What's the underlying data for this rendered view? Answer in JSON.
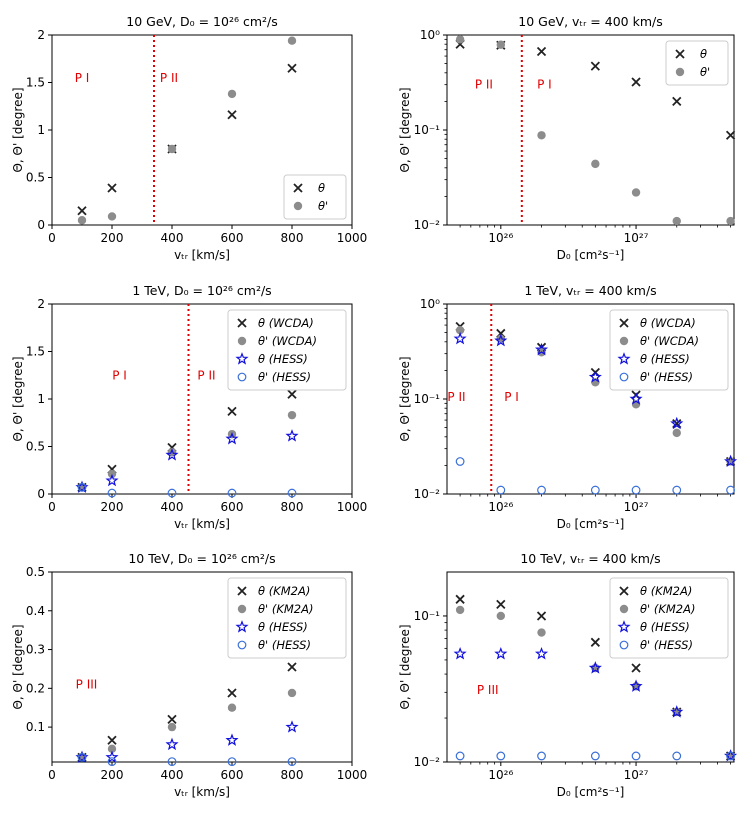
{
  "colors": {
    "theta": "#222222",
    "theta_prime": "#8c8c8c",
    "hess": "#1010e0",
    "hess_open": "#3a6fd8",
    "region": "#e00000"
  },
  "chart_data": [
    {
      "type": "scatter",
      "scale": "linear",
      "title": "10 GeV, D₀ = 10²⁶ cm²/s",
      "xlabel": "vₜᵣ [km/s]",
      "ylabel": "Θ, Θ' [degree]",
      "xlim": [
        0,
        1000
      ],
      "ylim": [
        0,
        2
      ],
      "xticks": [
        0,
        200,
        400,
        600,
        800,
        1000
      ],
      "xtick_labels": [
        "0",
        "200",
        "400",
        "600",
        "800",
        "1000"
      ],
      "yticks": [
        0,
        0.5,
        1,
        1.5,
        2
      ],
      "ytick_labels": [
        "0",
        "0.5",
        "1",
        "1.5",
        "2"
      ],
      "vline": 340,
      "regions": [
        {
          "label": "P I",
          "x": 100,
          "y": 1.55
        },
        {
          "label": "P II",
          "x": 390,
          "y": 1.55
        }
      ],
      "legend": "lower-right",
      "series": [
        {
          "name": "θ",
          "marker": "x",
          "x": [
            100,
            200,
            400,
            600,
            800
          ],
          "y": [
            0.15,
            0.39,
            0.8,
            1.16,
            1.65
          ]
        },
        {
          "name": "θ'",
          "marker": "dot",
          "x": [
            100,
            200,
            400,
            600,
            800
          ],
          "y": [
            0.05,
            0.09,
            0.8,
            1.38,
            1.94
          ]
        }
      ]
    },
    {
      "type": "scatter",
      "scale": "loglog",
      "title": "10 GeV, vₜᵣ = 400 km/s",
      "xlabel": "D₀ [cm²s⁻¹]",
      "ylabel": "Θ, Θ' [degree]",
      "xlim": [
        4e+25,
        5.3e+27
      ],
      "ylim": [
        0.01,
        1
      ],
      "xticks": [
        1e+26,
        1e+27
      ],
      "xtick_labels": [
        "10²⁶",
        "10²⁷"
      ],
      "yticks": [
        0.01,
        0.1,
        1
      ],
      "ytick_labels": [
        "10⁻²",
        "10⁻¹",
        "10⁰"
      ],
      "vline": 1.43e+26,
      "regions": [
        {
          "label": "P II",
          "x": 7.5e+25,
          "y": 0.3
        },
        {
          "label": "P I",
          "x": 2.1e+26,
          "y": 0.3
        }
      ],
      "legend": "top-right",
      "series": [
        {
          "name": "θ",
          "marker": "x",
          "x": [
            5e+25,
            1e+26,
            2e+26,
            5e+26,
            1e+27,
            2e+27,
            5e+27
          ],
          "y": [
            0.8,
            0.78,
            0.67,
            0.47,
            0.32,
            0.2,
            0.088
          ]
        },
        {
          "name": "θ'",
          "marker": "dot",
          "x": [
            5e+25,
            1e+26,
            2e+26,
            5e+26,
            1e+27,
            2e+27,
            5e+27
          ],
          "y": [
            0.9,
            0.79,
            0.088,
            0.044,
            0.022,
            0.011,
            0.011
          ]
        }
      ]
    },
    {
      "type": "scatter",
      "scale": "linear",
      "title": "1 TeV, D₀ = 10²⁶ cm²/s",
      "xlabel": "vₜᵣ [km/s]",
      "ylabel": "Θ, Θ' [degree]",
      "xlim": [
        0,
        1000
      ],
      "ylim": [
        0,
        2
      ],
      "xticks": [
        0,
        200,
        400,
        600,
        800,
        1000
      ],
      "xtick_labels": [
        "0",
        "200",
        "400",
        "600",
        "800",
        "1000"
      ],
      "yticks": [
        0,
        0.5,
        1,
        1.5,
        2
      ],
      "ytick_labels": [
        "0",
        "0.5",
        "1",
        "1.5",
        "2"
      ],
      "vline": 455,
      "regions": [
        {
          "label": "P I",
          "x": 225,
          "y": 1.25
        },
        {
          "label": "P II",
          "x": 515,
          "y": 1.25
        }
      ],
      "legend": "top-right",
      "series": [
        {
          "name": "θ (WCDA)",
          "marker": "x",
          "x": [
            100,
            200,
            400,
            600,
            800
          ],
          "y": [
            0.07,
            0.26,
            0.49,
            0.87,
            1.05
          ]
        },
        {
          "name": "θ' (WCDA)",
          "marker": "dot",
          "x": [
            100,
            200,
            400,
            600,
            800
          ],
          "y": [
            0.07,
            0.21,
            0.44,
            0.63,
            0.83
          ]
        },
        {
          "name": "θ (HESS)",
          "marker": "star",
          "x": [
            100,
            200,
            400,
            600,
            800
          ],
          "y": [
            0.07,
            0.14,
            0.41,
            0.58,
            0.61
          ]
        },
        {
          "name": "θ' (HESS)",
          "marker": "circle",
          "x": [
            100,
            200,
            400,
            600,
            800
          ],
          "y": [
            0.07,
            0.01,
            0.01,
            0.01,
            0.01
          ]
        }
      ]
    },
    {
      "type": "scatter",
      "scale": "loglog",
      "title": "1 TeV, vₜᵣ = 400 km/s",
      "xlabel": "D₀ [cm²s⁻¹]",
      "ylabel": "Θ, Θ' [degree]",
      "xlim": [
        4e+25,
        5.3e+27
      ],
      "ylim": [
        0.01,
        1
      ],
      "xticks": [
        1e+26,
        1e+27
      ],
      "xtick_labels": [
        "10²⁶",
        "10²⁷"
      ],
      "yticks": [
        0.01,
        0.1,
        1
      ],
      "ytick_labels": [
        "10⁻²",
        "10⁻¹",
        "10⁰"
      ],
      "vline": 8.5e+25,
      "regions": [
        {
          "label": "P II",
          "x": 4.7e+25,
          "y": 0.105
        },
        {
          "label": "P I",
          "x": 1.2e+26,
          "y": 0.105
        }
      ],
      "legend": "top-right",
      "series": [
        {
          "name": "θ (WCDA)",
          "marker": "x",
          "x": [
            5e+25,
            1e+26,
            2e+26,
            5e+26,
            1e+27,
            2e+27,
            5e+27
          ],
          "y": [
            0.58,
            0.49,
            0.35,
            0.19,
            0.11,
            0.055,
            0.022
          ]
        },
        {
          "name": "θ' (WCDA)",
          "marker": "dot",
          "x": [
            5e+25,
            1e+26,
            2e+26,
            5e+26,
            1e+27,
            2e+27,
            5e+27
          ],
          "y": [
            0.53,
            0.43,
            0.31,
            0.15,
            0.088,
            0.044,
            0.022
          ]
        },
        {
          "name": "θ (HESS)",
          "marker": "star",
          "x": [
            5e+25,
            1e+26,
            2e+26,
            5e+26,
            1e+27,
            2e+27,
            5e+27
          ],
          "y": [
            0.43,
            0.41,
            0.33,
            0.17,
            0.1,
            0.055,
            0.022
          ]
        },
        {
          "name": "θ' (HESS)",
          "marker": "circle",
          "x": [
            5e+25,
            1e+26,
            2e+26,
            5e+26,
            1e+27,
            2e+27,
            5e+27
          ],
          "y": [
            0.022,
            0.011,
            0.011,
            0.011,
            0.011,
            0.011,
            0.011
          ]
        }
      ]
    },
    {
      "type": "scatter",
      "scale": "linear",
      "title": "10 TeV, D₀ = 10²⁶ cm²/s",
      "xlabel": "vₜᵣ [km/s]",
      "ylabel": "Θ, Θ' [degree]",
      "xlim": [
        0,
        1000
      ],
      "ylim": [
        0.01,
        0.5
      ],
      "xticks": [
        0,
        200,
        400,
        600,
        800,
        1000
      ],
      "xtick_labels": [
        "0",
        "200",
        "400",
        "600",
        "800",
        "1000"
      ],
      "yticks": [
        0.1,
        0.2,
        0.3,
        0.4,
        0.5
      ],
      "ytick_labels": [
        "0.1",
        "0.2",
        "0.3",
        "0.4",
        "0.5"
      ],
      "vline": null,
      "regions": [
        {
          "label": "P III",
          "x": 115,
          "y": 0.21
        }
      ],
      "legend": "top-right",
      "series": [
        {
          "name": "θ (KM2A)",
          "marker": "x",
          "x": [
            100,
            200,
            400,
            600,
            800
          ],
          "y": [
            0.022,
            0.066,
            0.12,
            0.188,
            0.255
          ]
        },
        {
          "name": "θ' (KM2A)",
          "marker": "dot",
          "x": [
            100,
            200,
            400,
            600,
            800
          ],
          "y": [
            0.022,
            0.044,
            0.1,
            0.15,
            0.188
          ]
        },
        {
          "name": "θ (HESS)",
          "marker": "star",
          "x": [
            100,
            200,
            400,
            600,
            800
          ],
          "y": [
            0.022,
            0.022,
            0.055,
            0.066,
            0.1
          ]
        },
        {
          "name": "θ' (HESS)",
          "marker": "circle",
          "x": [
            100,
            200,
            400,
            600,
            800
          ],
          "y": [
            0.022,
            0.011,
            0.011,
            0.011,
            0.011
          ]
        }
      ]
    },
    {
      "type": "scatter",
      "scale": "loglog",
      "title": "10 TeV, vₜᵣ = 400 km/s",
      "xlabel": "D₀ [cm²s⁻¹]",
      "ylabel": "Θ, Θ' [degree]",
      "xlim": [
        4e+25,
        5.3e+27
      ],
      "ylim": [
        0.01,
        0.2
      ],
      "xticks": [
        1e+26,
        1e+27
      ],
      "xtick_labels": [
        "10²⁶",
        "10²⁷"
      ],
      "yticks": [
        0.01,
        0.1
      ],
      "ytick_labels": [
        "10⁻²",
        "10⁻¹"
      ],
      "vline": null,
      "regions": [
        {
          "label": "P III",
          "x": 8e+25,
          "y": 0.031
        }
      ],
      "legend": "top-right",
      "series": [
        {
          "name": "θ (KM2A)",
          "marker": "x",
          "x": [
            5e+25,
            1e+26,
            2e+26,
            5e+26,
            1e+27,
            2e+27,
            5e+27
          ],
          "y": [
            0.13,
            0.12,
            0.1,
            0.066,
            0.044,
            0.022,
            0.011
          ]
        },
        {
          "name": "θ' (KM2A)",
          "marker": "dot",
          "x": [
            5e+25,
            1e+26,
            2e+26,
            5e+26,
            1e+27,
            2e+27,
            5e+27
          ],
          "y": [
            0.11,
            0.1,
            0.077,
            0.044,
            0.033,
            0.022,
            0.011
          ]
        },
        {
          "name": "θ (HESS)",
          "marker": "star",
          "x": [
            5e+25,
            1e+26,
            2e+26,
            5e+26,
            1e+27,
            2e+27,
            5e+27
          ],
          "y": [
            0.055,
            0.055,
            0.055,
            0.044,
            0.033,
            0.022,
            0.011
          ]
        },
        {
          "name": "θ' (HESS)",
          "marker": "circle",
          "x": [
            5e+25,
            1e+26,
            2e+26,
            5e+26,
            1e+27,
            2e+27,
            5e+27
          ],
          "y": [
            0.011,
            0.011,
            0.011,
            0.011,
            0.011,
            0.011,
            0.011
          ]
        }
      ]
    }
  ]
}
